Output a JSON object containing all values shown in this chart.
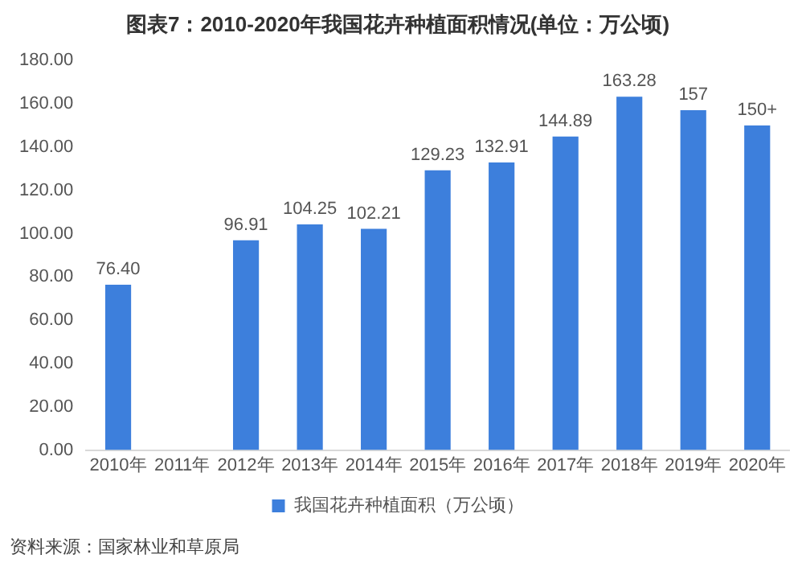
{
  "chart_data": {
    "type": "bar",
    "title": "图表7：2010-2020年我国花卉种植面积情况(单位：万公顷)",
    "categories": [
      "2010年",
      "2011年",
      "2012年",
      "2013年",
      "2014年",
      "2015年",
      "2016年",
      "2017年",
      "2018年",
      "2019年",
      "2020年"
    ],
    "series": [
      {
        "name": "我国花卉种植面积（万公顷）",
        "color": "#3d7fdc",
        "values": [
          76.4,
          null,
          96.91,
          104.25,
          102.21,
          129.23,
          132.91,
          144.89,
          163.28,
          157,
          150
        ],
        "value_labels": [
          "76.40",
          null,
          "96.91",
          "104.25",
          "102.21",
          "129.23",
          "132.91",
          "144.89",
          "163.28",
          "157",
          "150+"
        ]
      }
    ],
    "ylim": [
      0,
      180
    ],
    "yticks": [
      {
        "value": 0,
        "label": "0.00"
      },
      {
        "value": 20,
        "label": "20.00"
      },
      {
        "value": 40,
        "label": "40.00"
      },
      {
        "value": 60,
        "label": "60.00"
      },
      {
        "value": 80,
        "label": "80.00"
      },
      {
        "value": 100,
        "label": "100.00"
      },
      {
        "value": 120,
        "label": "120.00"
      },
      {
        "value": 140,
        "label": "140.00"
      },
      {
        "value": 160,
        "label": "160.00"
      },
      {
        "value": 180,
        "label": "180.00"
      }
    ],
    "grid": false,
    "legend": "bottom",
    "annotations": [
      "资料来源：国家林业和草原局"
    ]
  }
}
